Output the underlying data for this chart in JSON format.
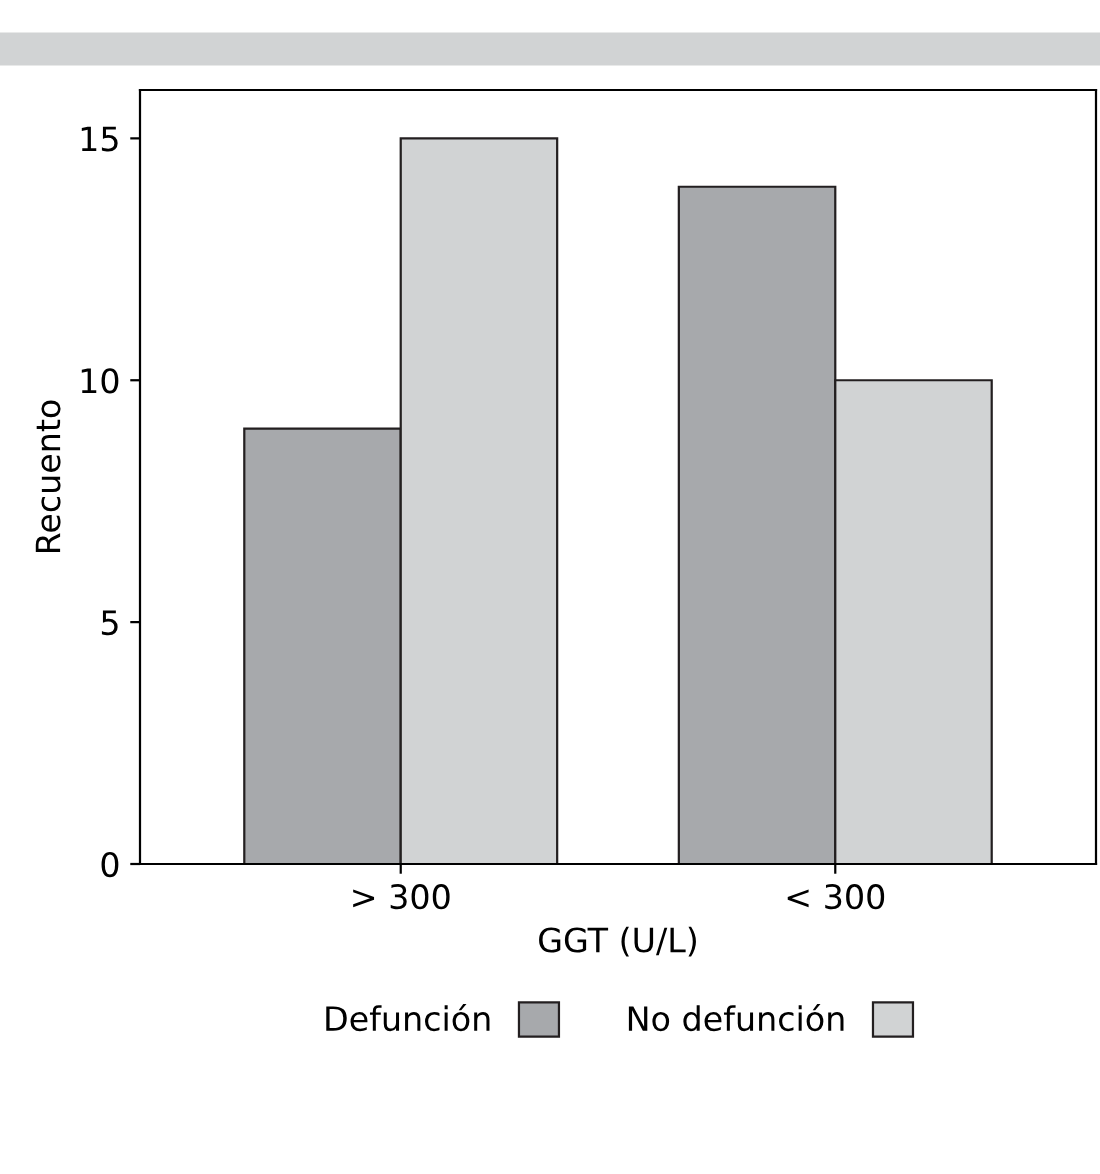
{
  "chart_data": {
    "type": "bar",
    "xlabel": "GGT (U/L)",
    "ylabel": "Recuento",
    "categories": [
      "> 300",
      "< 300"
    ],
    "series": [
      {
        "name": "Defunción",
        "color": "#a7a9ac",
        "values": [
          9,
          14
        ]
      },
      {
        "name": "No defunción",
        "color": "#d1d3d4",
        "values": [
          15,
          10
        ]
      }
    ],
    "ylim": [
      0,
      16
    ],
    "yticks": [
      0,
      5,
      10,
      15
    ],
    "grid": false,
    "legend": "bottom"
  }
}
